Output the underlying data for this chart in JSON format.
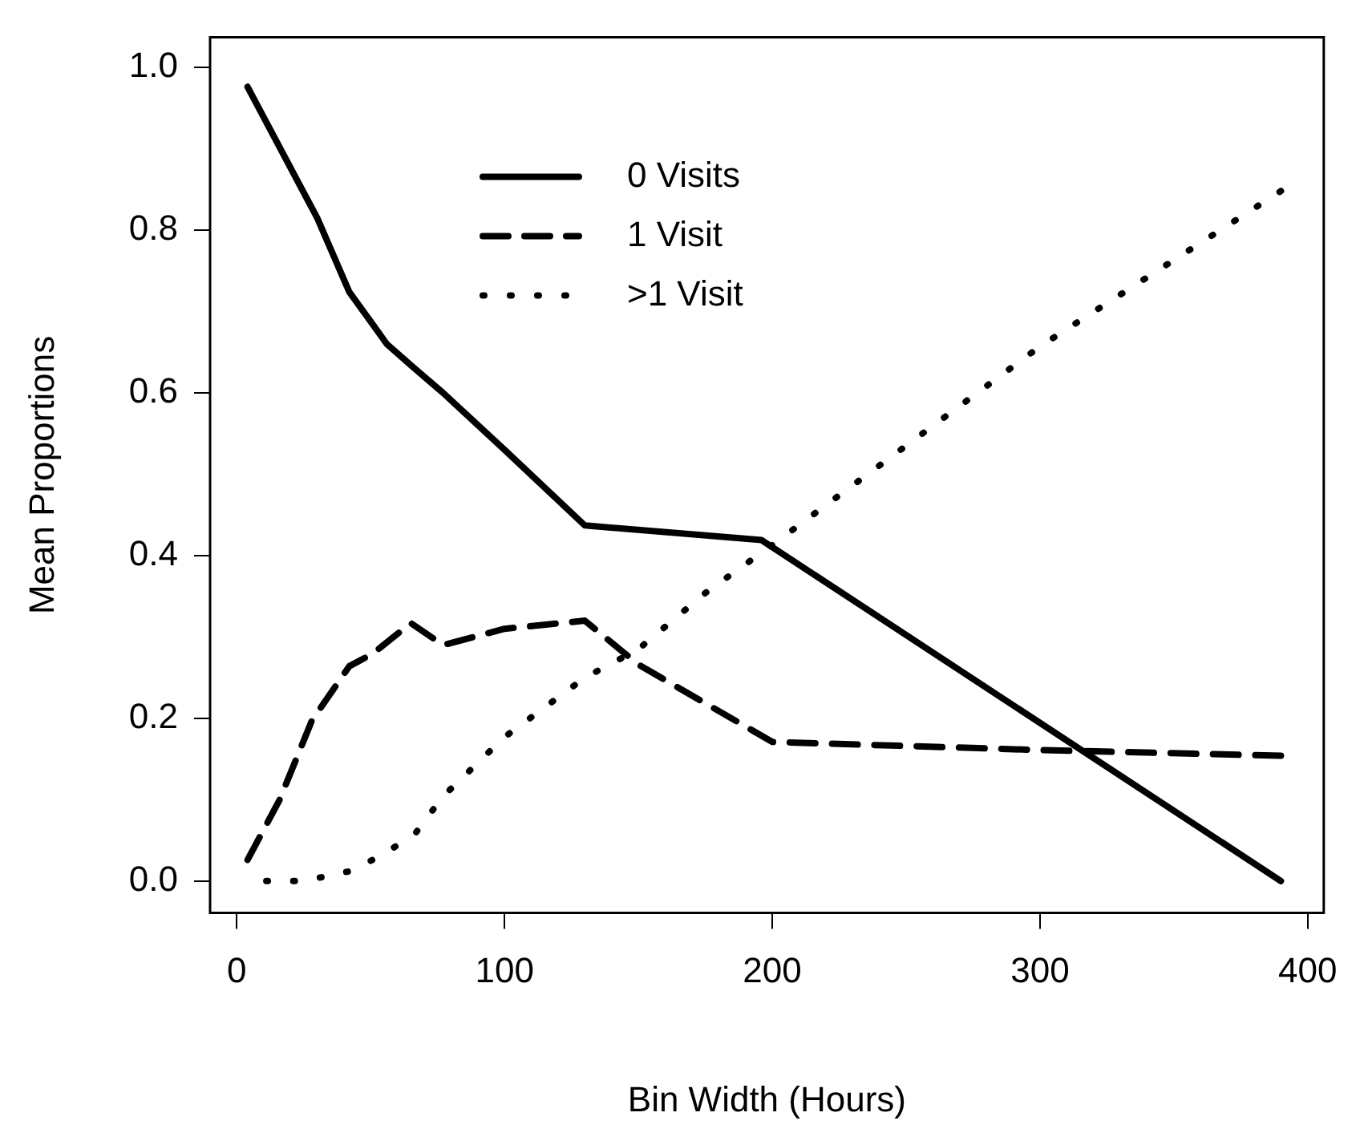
{
  "chart_data": {
    "type": "line",
    "xlabel": "Bin Width (Hours)",
    "ylabel": "Mean Proportions",
    "xlim": [
      -10,
      406
    ],
    "ylim": [
      -0.039,
      1.037
    ],
    "xticks": [
      0,
      100,
      200,
      300,
      400
    ],
    "yticks": [
      {
        "value": 0,
        "label": "0.0"
      },
      {
        "value": 0.2,
        "label": "0.2"
      },
      {
        "value": 0.4,
        "label": "0.4"
      },
      {
        "value": 0.6,
        "label": "0.6"
      },
      {
        "value": 0.8,
        "label": "0.8"
      },
      {
        "value": 1,
        "label": "1.0"
      }
    ],
    "grid": false,
    "legend": "top",
    "marker": "none",
    "series": [
      {
        "name": "0 Visits",
        "color": "#000000",
        "line_style": "solid",
        "x": [
          4,
          30,
          42,
          51,
          56,
          65,
          77,
          100,
          130,
          196,
          390
        ],
        "values": [
          0.976,
          0.815,
          0.724,
          0.683,
          0.66,
          0.634,
          0.6,
          0.53,
          0.437,
          0.419,
          0
        ]
      },
      {
        "name": "1 Visit",
        "color": "#000000",
        "line_style": "dashed",
        "x": [
          4,
          16,
          28,
          42,
          51,
          65,
          77,
          100,
          130,
          150,
          200,
          300,
          390
        ],
        "values": [
          0.026,
          0.1,
          0.197,
          0.264,
          0.28,
          0.317,
          0.29,
          0.31,
          0.32,
          0.266,
          0.171,
          0.161,
          0.154
        ]
      },
      {
        "name": ">1 Visit",
        "color": "#000000",
        "line_style": "dotted",
        "x": [
          11,
          25,
          42,
          55,
          67,
          77,
          100,
          130,
          150,
          175,
          200,
          300,
          390
        ],
        "values": [
          0,
          0,
          0.012,
          0.033,
          0.06,
          0.104,
          0.177,
          0.25,
          0.285,
          0.354,
          0.413,
          0.657,
          0.848
        ]
      }
    ]
  }
}
